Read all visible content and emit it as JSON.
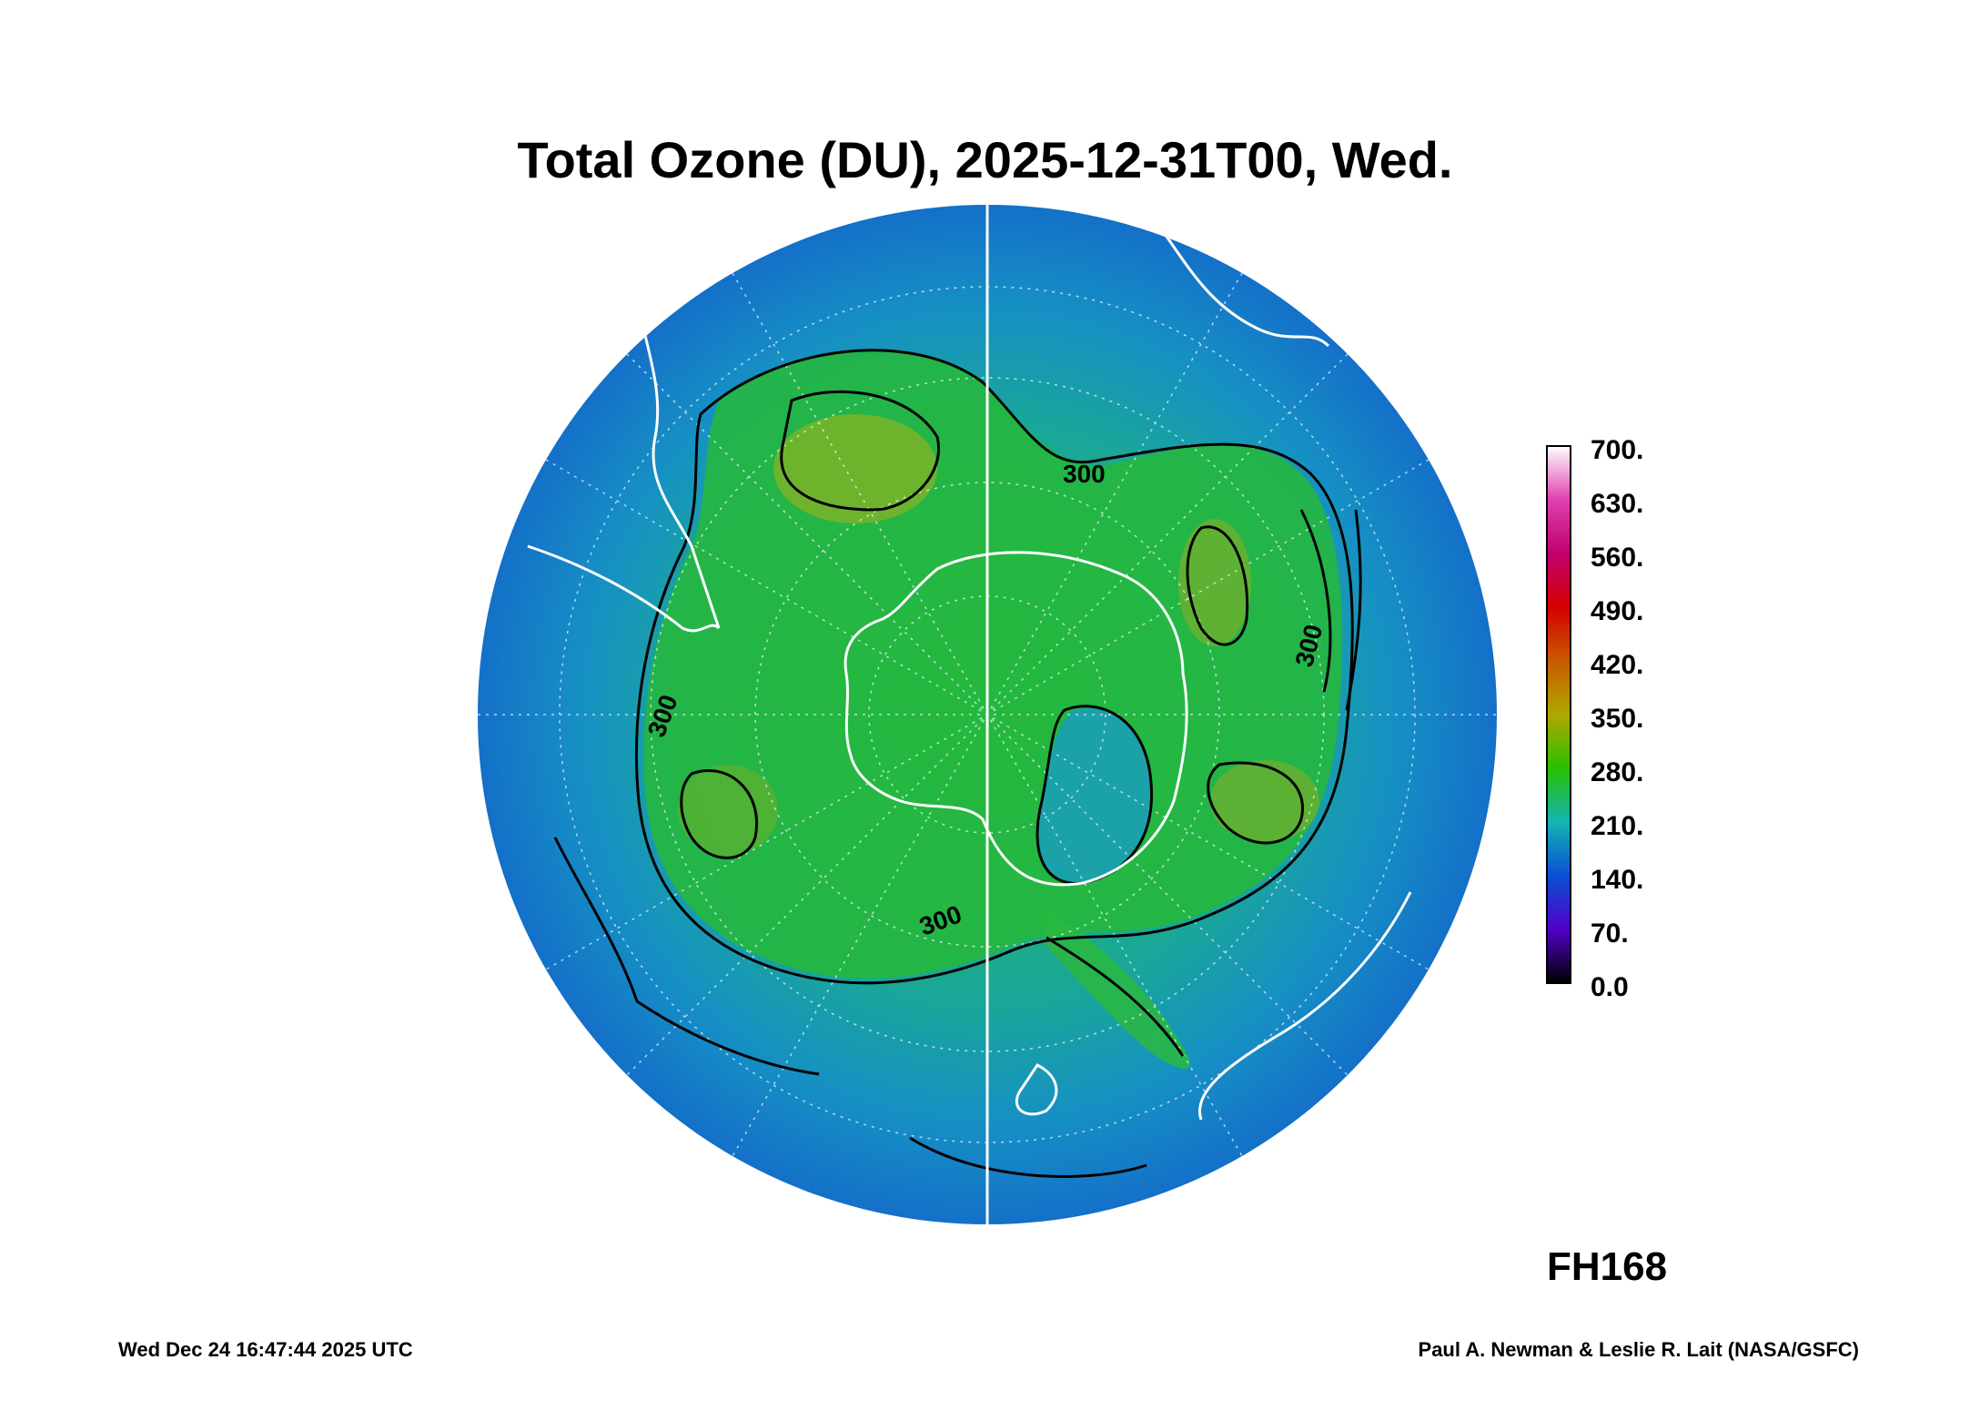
{
  "title": "Total Ozone (DU), 2025-12-31T00, Wed.",
  "forecast_hour": "FH168",
  "footer": {
    "timestamp": "Wed Dec 24 16:47:44 2025 UTC",
    "credit": "Paul A. Newman & Leslie R. Lait (NASA/GSFC)"
  },
  "colorbar": {
    "labels": [
      "700.",
      "630.",
      "560.",
      "490.",
      "420.",
      "350.",
      "280.",
      "210.",
      "140.",
      "70.",
      "0.0"
    ],
    "colors": [
      "#ffffff",
      "#e040b0",
      "#c0006e",
      "#d40000",
      "#c85a00",
      "#b0a800",
      "#28c000",
      "#14b4b4",
      "#0a50d2",
      "#5000c8",
      "#000000"
    ]
  },
  "map": {
    "projection": "south-polar-orthographic",
    "contour_labels": [
      "300",
      "300",
      "300",
      "300"
    ],
    "colors": {
      "ocean_low": "#1478c8",
      "mid": "#19a5b4",
      "high": "#28b832",
      "peak": "#78b428",
      "contour": "#000000",
      "coastline": "#ffffff"
    }
  }
}
